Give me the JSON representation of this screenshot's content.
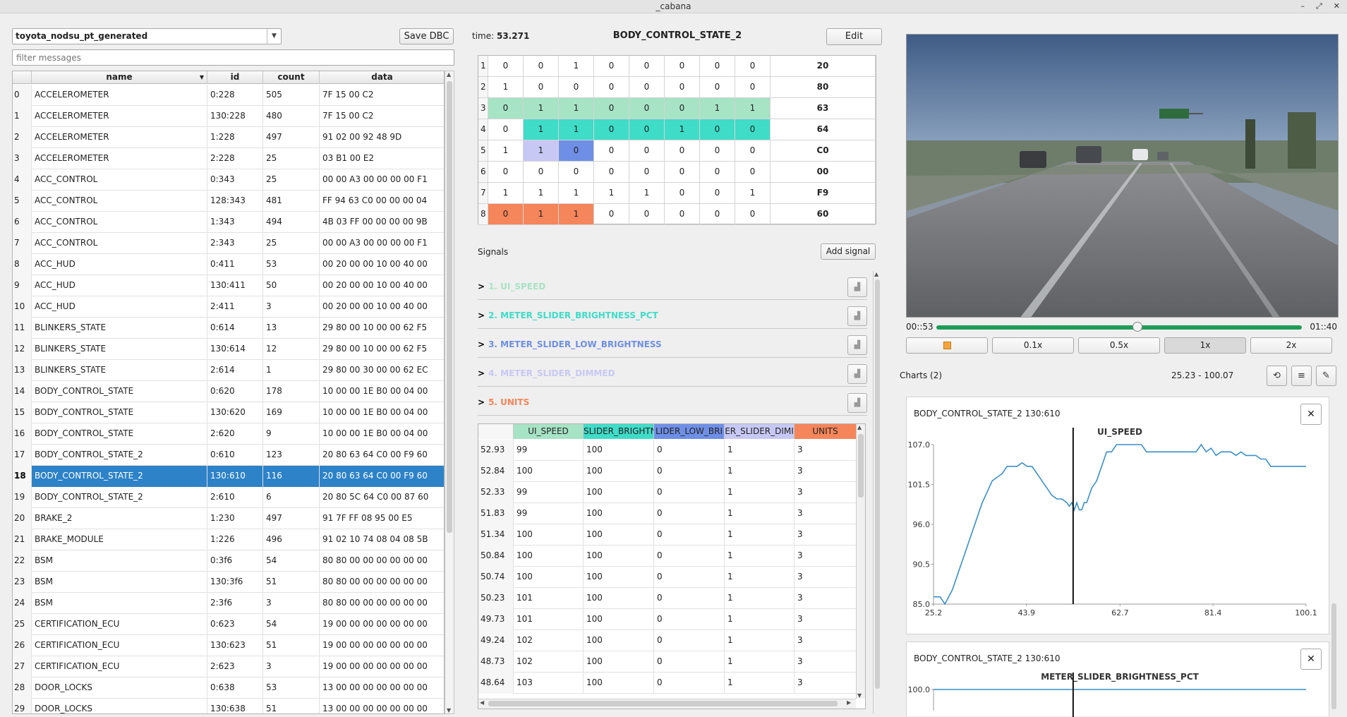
{
  "window": {
    "title": "_cabana",
    "controls": [
      "–",
      "⤢",
      "✕"
    ]
  },
  "dbc": {
    "selected": "toyota_nodsu_pt_generated",
    "save_label": "Save DBC"
  },
  "filter": {
    "placeholder": "filter messages"
  },
  "messages": {
    "columns": [
      "name",
      "id",
      "count",
      "data"
    ],
    "selected_index": 18,
    "rows": [
      {
        "idx": "0",
        "name": "ACCELEROMETER",
        "id": "0:228",
        "count": "505",
        "data": "7F 15 00 C2"
      },
      {
        "idx": "1",
        "name": "ACCELEROMETER",
        "id": "130:228",
        "count": "480",
        "data": "7F 15 00 C2"
      },
      {
        "idx": "2",
        "name": "ACCELEROMETER",
        "id": "1:228",
        "count": "497",
        "data": "91 02 00 92 48 9D"
      },
      {
        "idx": "3",
        "name": "ACCELEROMETER",
        "id": "2:228",
        "count": "25",
        "data": "03 B1 00 E2"
      },
      {
        "idx": "4",
        "name": "ACC_CONTROL",
        "id": "0:343",
        "count": "25",
        "data": "00 00 A3 00 00 00 00 F1"
      },
      {
        "idx": "5",
        "name": "ACC_CONTROL",
        "id": "128:343",
        "count": "481",
        "data": "FF 94 63 C0 00 00 00 04"
      },
      {
        "idx": "6",
        "name": "ACC_CONTROL",
        "id": "1:343",
        "count": "494",
        "data": "4B 03 FF 00 00 00 00 9B"
      },
      {
        "idx": "7",
        "name": "ACC_CONTROL",
        "id": "2:343",
        "count": "25",
        "data": "00 00 A3 00 00 00 00 F1"
      },
      {
        "idx": "8",
        "name": "ACC_HUD",
        "id": "0:411",
        "count": "53",
        "data": "00 20 00 00 10 00 40 00"
      },
      {
        "idx": "9",
        "name": "ACC_HUD",
        "id": "130:411",
        "count": "50",
        "data": "00 20 00 00 10 00 40 00"
      },
      {
        "idx": "10",
        "name": "ACC_HUD",
        "id": "2:411",
        "count": "3",
        "data": "00 20 00 00 10 00 40 00"
      },
      {
        "idx": "11",
        "name": "BLINKERS_STATE",
        "id": "0:614",
        "count": "13",
        "data": "29 80 00 10 00 00 62 F5"
      },
      {
        "idx": "12",
        "name": "BLINKERS_STATE",
        "id": "130:614",
        "count": "12",
        "data": "29 80 00 10 00 00 62 F5"
      },
      {
        "idx": "13",
        "name": "BLINKERS_STATE",
        "id": "2:614",
        "count": "1",
        "data": "29 80 00 30 00 00 62 EC"
      },
      {
        "idx": "14",
        "name": "BODY_CONTROL_STATE",
        "id": "0:620",
        "count": "178",
        "data": "10 00 00 1E B0 00 04 00"
      },
      {
        "idx": "15",
        "name": "BODY_CONTROL_STATE",
        "id": "130:620",
        "count": "169",
        "data": "10 00 00 1E B0 00 04 00"
      },
      {
        "idx": "16",
        "name": "BODY_CONTROL_STATE",
        "id": "2:620",
        "count": "9",
        "data": "10 00 00 1E B0 00 04 00"
      },
      {
        "idx": "17",
        "name": "BODY_CONTROL_STATE_2",
        "id": "0:610",
        "count": "123",
        "data": "20 80 63 64 C0 00 F9 60"
      },
      {
        "idx": "18",
        "name": "BODY_CONTROL_STATE_2",
        "id": "130:610",
        "count": "116",
        "data": "20 80 63 64 C0 00 F9 60"
      },
      {
        "idx": "19",
        "name": "BODY_CONTROL_STATE_2",
        "id": "2:610",
        "count": "6",
        "data": "20 80 5C 64 C0 00 87 60"
      },
      {
        "idx": "20",
        "name": "BRAKE_2",
        "id": "1:230",
        "count": "497",
        "data": "91 7F FF 08 95 00 E5"
      },
      {
        "idx": "21",
        "name": "BRAKE_MODULE",
        "id": "1:226",
        "count": "496",
        "data": "91 02 10 74 08 04 08 5B"
      },
      {
        "idx": "22",
        "name": "BSM",
        "id": "0:3f6",
        "count": "54",
        "data": "80 80 00 00 00 00 00 00"
      },
      {
        "idx": "23",
        "name": "BSM",
        "id": "130:3f6",
        "count": "51",
        "data": "80 80 00 00 00 00 00 00"
      },
      {
        "idx": "24",
        "name": "BSM",
        "id": "2:3f6",
        "count": "3",
        "data": "80 80 00 00 00 00 00 00"
      },
      {
        "idx": "25",
        "name": "CERTIFICATION_ECU",
        "id": "0:623",
        "count": "54",
        "data": "19 00 00 00 00 00 00 00"
      },
      {
        "idx": "26",
        "name": "CERTIFICATION_ECU",
        "id": "130:623",
        "count": "51",
        "data": "19 00 00 00 00 00 00 00"
      },
      {
        "idx": "27",
        "name": "CERTIFICATION_ECU",
        "id": "2:623",
        "count": "3",
        "data": "19 00 00 00 00 00 00 00"
      },
      {
        "idx": "28",
        "name": "DOOR_LOCKS",
        "id": "0:638",
        "count": "53",
        "data": "13 00 00 00 00 00 00 00"
      },
      {
        "idx": "29",
        "name": "DOOR_LOCKS",
        "id": "130:638",
        "count": "51",
        "data": "13 00 00 00 00 00 00 00"
      }
    ]
  },
  "detail": {
    "time_label": "time:",
    "time_value": "53.271",
    "message_name": "BODY_CONTROL_STATE_2",
    "edit_label": "Edit",
    "bits": [
      {
        "row": "1",
        "bits": [
          "0",
          "0",
          "1",
          "0",
          "0",
          "0",
          "0",
          "0"
        ],
        "hex": "20",
        "colors": [
          "",
          "",
          "",
          "",
          "",
          "",
          "",
          ""
        ]
      },
      {
        "row": "2",
        "bits": [
          "1",
          "0",
          "0",
          "0",
          "0",
          "0",
          "0",
          "0"
        ],
        "hex": "80",
        "colors": [
          "",
          "",
          "",
          "",
          "",
          "",
          "",
          ""
        ]
      },
      {
        "row": "3",
        "bits": [
          "0",
          "1",
          "1",
          "0",
          "0",
          "0",
          "1",
          "1"
        ],
        "hex": "63",
        "colors": [
          "#a7e3c5",
          "#a7e3c5",
          "#a7e3c5",
          "#a7e3c5",
          "#a7e3c5",
          "#a7e3c5",
          "#a7e3c5",
          "#a7e3c5"
        ]
      },
      {
        "row": "4",
        "bits": [
          "0",
          "1",
          "1",
          "0",
          "0",
          "1",
          "0",
          "0"
        ],
        "hex": "64",
        "colors": [
          "",
          "#3fdcc8",
          "#3fdcc8",
          "#3fdcc8",
          "#3fdcc8",
          "#3fdcc8",
          "#3fdcc8",
          "#3fdcc8"
        ]
      },
      {
        "row": "5",
        "bits": [
          "1",
          "1",
          "0",
          "0",
          "0",
          "0",
          "0",
          "0"
        ],
        "hex": "C0",
        "colors": [
          "",
          "#c8c8f5",
          "#6f8fe6",
          "",
          "",
          "",
          "",
          ""
        ]
      },
      {
        "row": "6",
        "bits": [
          "0",
          "0",
          "0",
          "0",
          "0",
          "0",
          "0",
          "0"
        ],
        "hex": "00",
        "colors": [
          "",
          "",
          "",
          "",
          "",
          "",
          "",
          ""
        ]
      },
      {
        "row": "7",
        "bits": [
          "1",
          "1",
          "1",
          "1",
          "1",
          "0",
          "0",
          "1"
        ],
        "hex": "F9",
        "colors": [
          "",
          "",
          "",
          "",
          "",
          "",
          "",
          ""
        ]
      },
      {
        "row": "8",
        "bits": [
          "0",
          "1",
          "1",
          "0",
          "0",
          "0",
          "0",
          "0"
        ],
        "hex": "60",
        "colors": [
          "#f5855a",
          "#f5855a",
          "#f5855a",
          "",
          "",
          "",
          "",
          ""
        ]
      }
    ],
    "signals_label": "Signals",
    "add_signal_label": "Add signal",
    "signals": [
      {
        "label": "1. UI_SPEED",
        "color": "#a7e3c5"
      },
      {
        "label": "2. METER_SLIDER_BRIGHTNESS_PCT",
        "color": "#3fdcc8"
      },
      {
        "label": "3. METER_SLIDER_LOW_BRIGHTNESS",
        "color": "#6f8fe6"
      },
      {
        "label": "4. METER_SLIDER_DIMMED",
        "color": "#c8c8f5"
      },
      {
        "label": "5. UNITS",
        "color": "#f5855a"
      }
    ],
    "value_columns": [
      "UI_SPEED",
      "SLIDER_BRIGHTN",
      "LIDER_LOW_BRI",
      "ER_SLIDER_DIMI",
      "UNITS"
    ],
    "value_rows": [
      [
        "52.93",
        "99",
        "100",
        "0",
        "1",
        "3"
      ],
      [
        "52.84",
        "100",
        "100",
        "0",
        "1",
        "3"
      ],
      [
        "52.33",
        "99",
        "100",
        "0",
        "1",
        "3"
      ],
      [
        "51.83",
        "99",
        "100",
        "0",
        "1",
        "3"
      ],
      [
        "51.34",
        "100",
        "100",
        "0",
        "1",
        "3"
      ],
      [
        "50.84",
        "100",
        "100",
        "0",
        "1",
        "3"
      ],
      [
        "50.74",
        "100",
        "100",
        "0",
        "1",
        "3"
      ],
      [
        "50.23",
        "101",
        "100",
        "0",
        "1",
        "3"
      ],
      [
        "49.73",
        "101",
        "100",
        "0",
        "1",
        "3"
      ],
      [
        "49.24",
        "102",
        "100",
        "0",
        "1",
        "3"
      ],
      [
        "48.73",
        "102",
        "100",
        "0",
        "1",
        "3"
      ],
      [
        "48.64",
        "103",
        "100",
        "0",
        "1",
        "3"
      ]
    ]
  },
  "video": {
    "current": "00::53",
    "total": "01::40",
    "progress": 0.55,
    "speeds": [
      "0.1x",
      "0.5x",
      "1x",
      "2x"
    ],
    "active_speed": "1x"
  },
  "charts_panel": {
    "label": "Charts (2)",
    "range": "25.23 - 100.07"
  },
  "chart_data": [
    {
      "type": "line",
      "header": "BODY_CONTROL_STATE_2 130:610",
      "title": "UI_SPEED",
      "x_ticks": [
        "25.2",
        "43.9",
        "62.7",
        "81.4",
        "100.1"
      ],
      "y_ticks": [
        "107.0",
        "101.5",
        "96.0",
        "90.5",
        "85.0"
      ],
      "xlim": [
        25.2,
        100.1
      ],
      "ylim": [
        85.0,
        107.0
      ],
      "cursor_x": 53.27,
      "line_color": "#3a8fc8",
      "x": [
        25.2,
        26.5,
        27.5,
        29,
        31,
        33,
        35,
        37,
        39,
        40,
        41,
        42,
        43,
        44,
        45,
        46,
        47,
        48,
        49,
        50,
        51,
        52,
        52.5,
        53,
        53.5,
        54,
        54.5,
        55,
        55.5,
        56,
        57,
        58,
        59,
        60,
        61,
        62,
        63,
        64,
        65,
        66,
        67,
        68,
        70,
        72,
        74,
        76,
        78,
        79,
        80,
        81,
        82,
        83,
        84,
        85,
        86,
        87,
        88,
        89,
        90,
        91,
        92,
        93,
        95,
        97,
        100.1
      ],
      "y": [
        86,
        86,
        85,
        87,
        91,
        95,
        99,
        102,
        103,
        104,
        104,
        104,
        104.5,
        104,
        104,
        103,
        102,
        101,
        100,
        99.5,
        99.5,
        99,
        98.5,
        99,
        98,
        99,
        98,
        98,
        99,
        99,
        101,
        102,
        104,
        106,
        106,
        107,
        107,
        107,
        107,
        107,
        107,
        106,
        106,
        106,
        106,
        106,
        106,
        107,
        106,
        106.5,
        105.5,
        106,
        106,
        106,
        105.5,
        106,
        105.5,
        105.5,
        105.5,
        105,
        105,
        104,
        104,
        104,
        104
      ]
    },
    {
      "type": "line",
      "header": "BODY_CONTROL_STATE_2 130:610",
      "title": "METER_SLIDER_BRIGHTNESS_PCT",
      "y_ticks": [
        "100.0"
      ],
      "xlim": [
        25.2,
        100.1
      ],
      "cursor_x": 53.27,
      "line_color": "#3a8fc8",
      "x": [
        25.2,
        100.1
      ],
      "y": [
        100,
        100
      ]
    }
  ],
  "icons": {
    "plot": "chart-icon",
    "close": "close-icon",
    "undo": "undo-icon",
    "clear": "clear-icon",
    "dock": "dock-icon"
  }
}
